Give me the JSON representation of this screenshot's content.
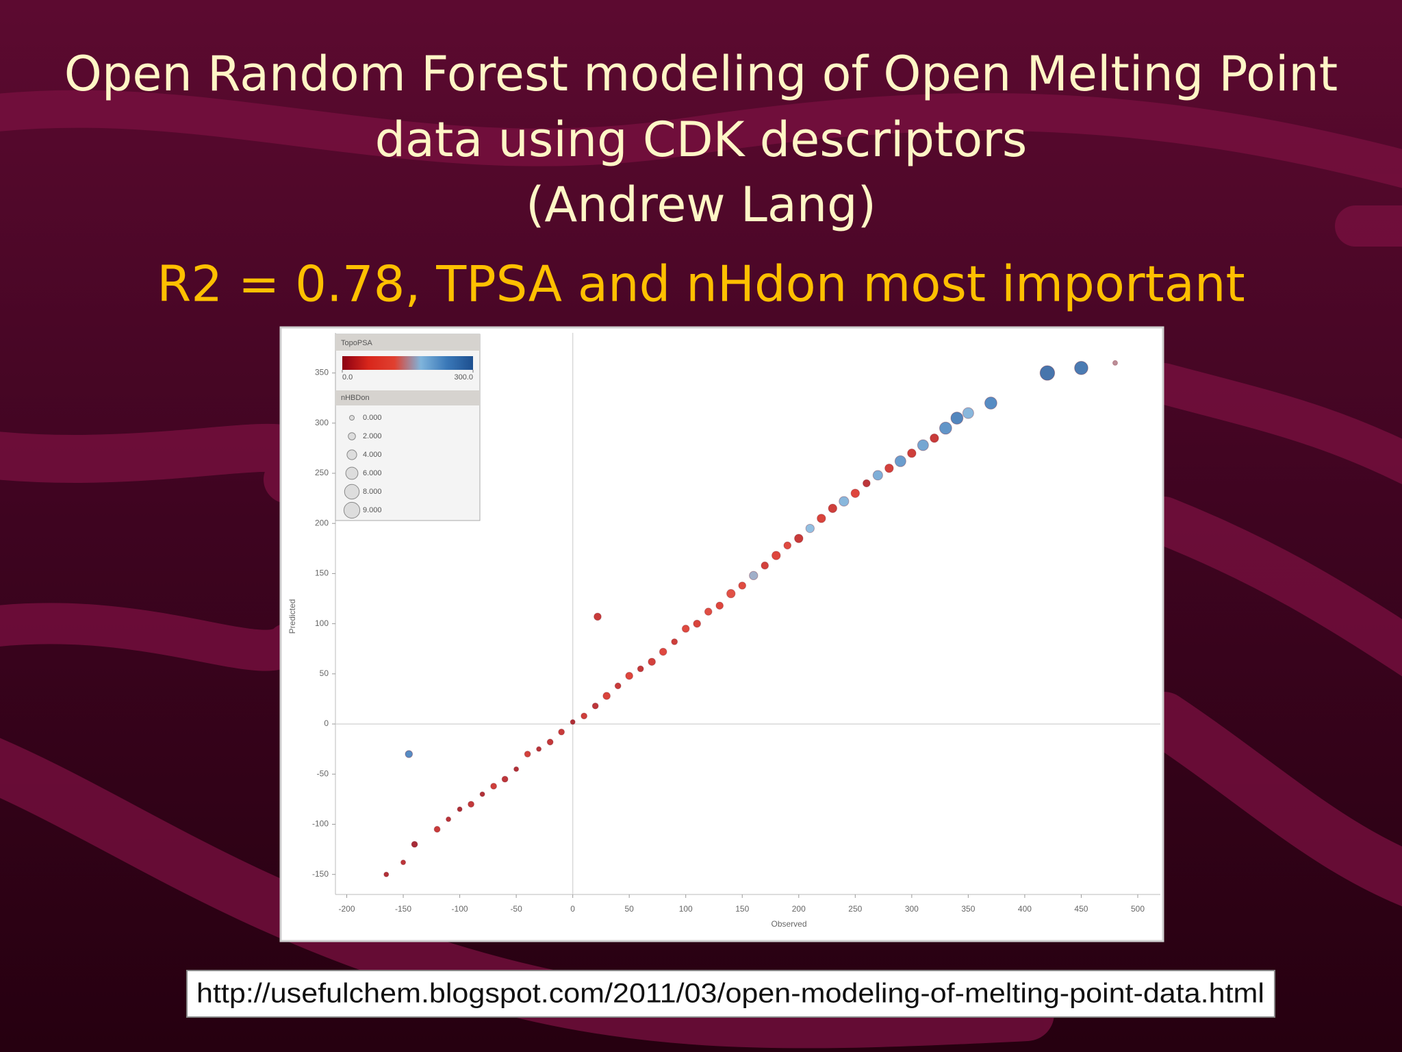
{
  "slide": {
    "title": [
      "Open Random Forest modeling of Open Melting Point",
      "data using CDK descriptors",
      "(Andrew Lang)"
    ],
    "subtitle": "R2 = 0.78, TPSA and nHdon most important",
    "url": "http://usefulchem.blogspot.com/2011/03/open-modeling-of-melting-point-data.html"
  },
  "chart_data": {
    "type": "scatter",
    "xlabel": "Observed",
    "ylabel": "Predicted",
    "xlim": [
      -210,
      520
    ],
    "ylim": [
      -170,
      390
    ],
    "xticks": [
      -200,
      -150,
      -100,
      -50,
      0,
      50,
      100,
      150,
      200,
      250,
      300,
      350,
      400,
      450,
      500
    ],
    "yticks": [
      -150,
      -100,
      -50,
      0,
      50,
      100,
      150,
      200,
      250,
      300,
      350
    ],
    "zero_lines": true,
    "colorbar": {
      "title": "TopoPSA",
      "clim": [
        0,
        300
      ],
      "colors": [
        "#8b0012",
        "#d8261b",
        "#e04030",
        "#7fb4dc",
        "#3a78b8",
        "#1d4f8f"
      ],
      "ticks": [
        {
          "value": 0,
          "label": "0.0"
        },
        {
          "value": 300,
          "label": "300.0"
        }
      ]
    },
    "size_legend": {
      "title": "nHBDon",
      "items": [
        {
          "value": 0,
          "label": "0.000"
        },
        {
          "value": 2,
          "label": "2.000"
        },
        {
          "value": 4,
          "label": "4.000"
        },
        {
          "value": 6,
          "label": "6.000"
        },
        {
          "value": 8,
          "label": "8.000"
        },
        {
          "value": 9,
          "label": "9.000"
        }
      ]
    },
    "series": [
      {
        "x": [
          -165,
          -150,
          -140,
          -120,
          -110,
          -100,
          -90,
          -80,
          -70,
          -60,
          -50,
          -40,
          -30,
          -20,
          -10,
          0,
          10,
          20,
          30,
          40,
          50,
          60,
          70,
          80,
          90,
          100,
          110,
          120,
          130,
          140,
          150,
          160,
          170,
          180,
          190,
          200,
          210,
          220,
          230,
          240,
          250,
          260,
          270,
          280,
          290,
          300,
          310,
          320,
          330,
          340,
          350,
          370,
          420,
          450,
          480,
          -145,
          22
        ],
        "values": [
          -150,
          -138,
          -120,
          -105,
          -95,
          -85,
          -80,
          -70,
          -62,
          -55,
          -45,
          -30,
          -25,
          -18,
          -8,
          2,
          8,
          18,
          28,
          38,
          48,
          55,
          62,
          72,
          82,
          95,
          100,
          112,
          118,
          130,
          138,
          148,
          158,
          168,
          178,
          185,
          195,
          205,
          215,
          222,
          230,
          240,
          248,
          255,
          262,
          270,
          278,
          285,
          295,
          305,
          310,
          320,
          350,
          355,
          360,
          -30,
          107
        ],
        "tpsa": [
          20,
          30,
          10,
          40,
          25,
          15,
          35,
          20,
          45,
          30,
          20,
          50,
          25,
          35,
          40,
          20,
          45,
          30,
          55,
          40,
          60,
          35,
          50,
          65,
          45,
          70,
          55,
          80,
          60,
          90,
          75,
          170,
          50,
          60,
          70,
          40,
          180,
          55,
          45,
          190,
          60,
          30,
          200,
          50,
          220,
          45,
          210,
          40,
          230,
          250,
          190,
          240,
          280,
          270,
          150,
          240,
          40
        ],
        "nhbdon": [
          0,
          0,
          1,
          1,
          0,
          0,
          1,
          0,
          1,
          1,
          0,
          1,
          0,
          1,
          1,
          0,
          1,
          1,
          2,
          1,
          2,
          1,
          2,
          2,
          1,
          2,
          2,
          2,
          2,
          3,
          2,
          3,
          2,
          3,
          2,
          3,
          3,
          3,
          3,
          4,
          3,
          2,
          4,
          3,
          5,
          3,
          5,
          3,
          6,
          6,
          5,
          6,
          8,
          7,
          0,
          2,
          2
        ]
      }
    ]
  }
}
